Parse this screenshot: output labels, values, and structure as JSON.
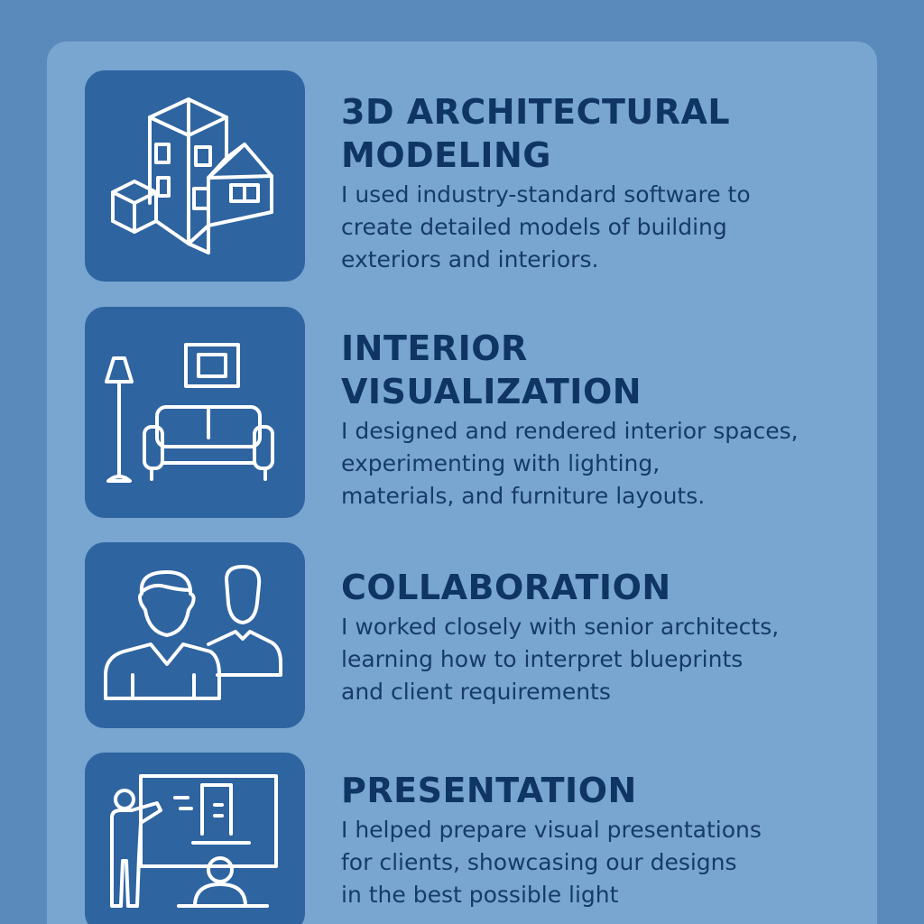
{
  "sections": [
    {
      "icon": "building-icon",
      "title": "3D ARCHITECTURAL\nMODELING",
      "description": "I used industry-standard software to\ncreate detailed models of building\nexteriors and interiors."
    },
    {
      "icon": "living-room-icon",
      "title": "INTERIOR\nVISUALIZATION",
      "description": "I designed and rendered interior spaces,\nexperimenting with lighting,\nmaterials, and furniture layouts."
    },
    {
      "icon": "people-icon",
      "title": "COLLABORATION",
      "description": "I worked closely with senior architects,\nlearning how to interpret blueprints\nand client requirements"
    },
    {
      "icon": "presenter-icon",
      "title": "PRESENTATION",
      "description": "I helped prepare visual presentations\nfor clients, showcasing our designs\nin the best possible light"
    }
  ],
  "colors": {
    "page_background": "#5a89bb",
    "panel_background": "#78a6d1",
    "tile_background": "#2e64a0",
    "title_text": "#0f3564",
    "body_text": "#163b68",
    "icon_stroke": "#ffffff"
  }
}
